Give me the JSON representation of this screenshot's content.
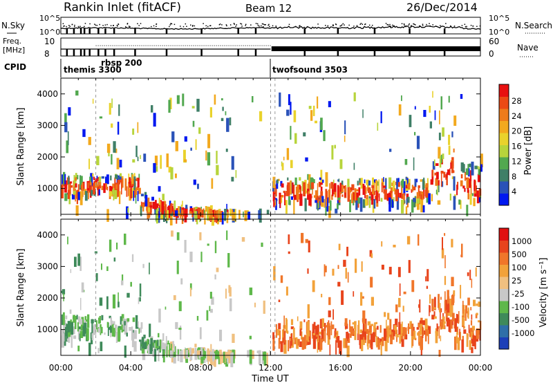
{
  "header": {
    "title": "Rankin Inlet (fitACF)",
    "beam": "Beam 12",
    "date": "26/Dec/2014"
  },
  "panel_labels": {
    "nsky": "N.Sky",
    "freq_line1": "Freq.",
    "freq_line2": "[MHz]",
    "cpid": "CPID",
    "nsearch": "N.Search",
    "nave": "Nave"
  },
  "chart_data": [
    {
      "type": "line",
      "title": "",
      "left_axis": {
        "label": "N.Sky",
        "ticks": [
          "10^5",
          "10^0"
        ]
      },
      "right_axis": {
        "label": "N.Search",
        "ticks": [
          "10^5",
          "10^0"
        ]
      }
    },
    {
      "type": "line",
      "left_axis": {
        "label": "Freq. [MHz]",
        "ticks": [
          "10",
          "8"
        ]
      },
      "right_axis": {
        "label": "Nave",
        "ticks": [
          "60",
          "0"
        ]
      }
    },
    {
      "type": "table",
      "label": "CPID",
      "segments": [
        {
          "start_hour": 0,
          "name": "themis 3300"
        },
        {
          "start_hour": 2,
          "name": "rbsp 200"
        },
        {
          "start_hour": 12,
          "name": "twofsound 3503"
        }
      ]
    },
    {
      "type": "heatmap",
      "ylabel": "Slant Range [km]",
      "yticks": [
        "1000",
        "2000",
        "3000",
        "4000"
      ],
      "ylim": [
        180,
        4500
      ],
      "colorbar": {
        "label": "Power [dB]",
        "ticks": [
          "4",
          "8",
          "12",
          "16",
          "20",
          "24",
          "28"
        ],
        "colors": [
          "#0018f0",
          "#2a52b8",
          "#3f7f67",
          "#52a84f",
          "#b7d43b",
          "#e9d22c",
          "#f2a91e",
          "#ee7b1a",
          "#ec4a14",
          "#e81010"
        ]
      }
    },
    {
      "type": "heatmap",
      "ylabel": "Slant Range [km]",
      "yticks": [
        "1000",
        "2000",
        "3000",
        "4000"
      ],
      "ylim": [
        180,
        4500
      ],
      "colorbar": {
        "label": "Velocity [m s⁻¹]",
        "ticks": [
          "1000",
          "500",
          "100",
          "25",
          "-25",
          "-100",
          "-500",
          "-1000"
        ],
        "colors": [
          "#1c3fb8",
          "#2f6fa8",
          "#3f8a5a",
          "#5fb84a",
          "#c8c8c8",
          "#f0c080",
          "#f2a23a",
          "#f0762a",
          "#e8441c",
          "#e01010"
        ]
      }
    }
  ],
  "xaxis": {
    "label": "Time UT",
    "ticks": [
      "00:00",
      "04:00",
      "08:00",
      "12:00",
      "16:00",
      "20:00",
      "00:00"
    ]
  }
}
